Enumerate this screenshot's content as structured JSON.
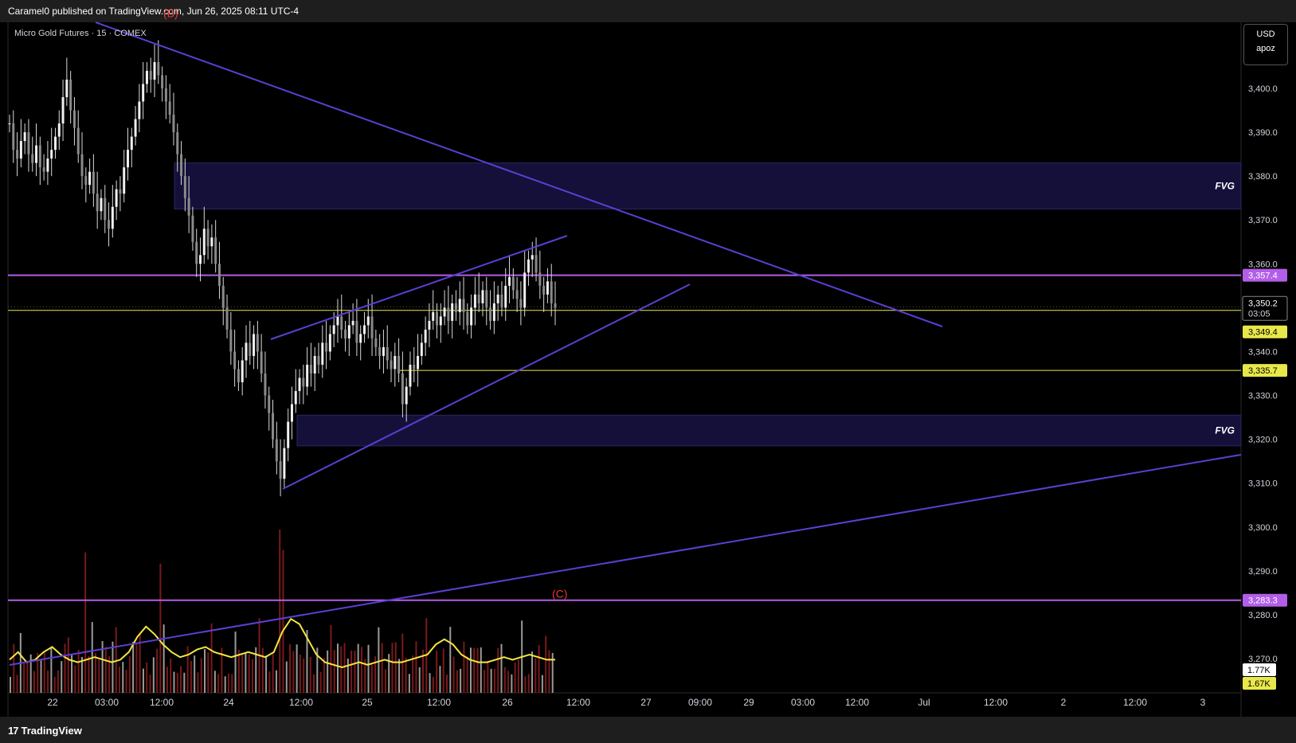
{
  "header": {
    "attribution": "Caramel0 published on TradingView.com, Jun 26, 2025 08:11 UTC-4"
  },
  "symbol_label": "Micro Gold Futures · 15 · COMEX",
  "currency_box": {
    "currency": "USD",
    "unit": "apoz"
  },
  "footer": {
    "brand": "TradingView"
  },
  "colors": {
    "background": "#000000",
    "trendline": "#5b3fd1",
    "level_purple": "#b35ee8",
    "level_yellow": "#e8e84a",
    "volume_ma": "#f5e642",
    "candle": "#d9d9d9",
    "volume_bar": "#7a1a1a",
    "fvg_fill": "#14103a",
    "wave_label": "#e53935"
  },
  "chart_data": {
    "type": "candlestick",
    "title": "Micro Gold Futures · 15 · COMEX",
    "y_ticks": [
      3400.0,
      3390.0,
      3380.0,
      3370.0,
      3360.0,
      3340.0,
      3330.0,
      3320.0,
      3310.0,
      3300.0,
      3290.0,
      3280.0,
      3270.0
    ],
    "y_tick_labels": [
      "3,400.0",
      "3,390.0",
      "3,380.0",
      "3,370.0",
      "3,360.0",
      "3,340.0",
      "3,330.0",
      "3,320.0",
      "3,310.0",
      "3,300.0",
      "3,290.0",
      "3,280.0",
      "3,270.0"
    ],
    "ylim": [
      3263.0,
      3414.0
    ],
    "x_tick_labels": [
      "22",
      "03:00",
      "12:00",
      "24",
      "12:00",
      "25",
      "12:00",
      "26",
      "12:00",
      "27",
      "09:00",
      "29",
      "03:00",
      "12:00",
      "Jul",
      "12:00",
      "2",
      "12:00",
      "3"
    ],
    "price_labels": [
      {
        "value": 3357.4,
        "text": "3,357.4",
        "kind": "purple"
      },
      {
        "value": 3350.2,
        "text": "3,350.2",
        "sub": "03:05",
        "kind": "current"
      },
      {
        "value": 3349.4,
        "text": "3,349.4",
        "kind": "yellow"
      },
      {
        "value": 3335.7,
        "text": "3,335.7",
        "kind": "yellow"
      },
      {
        "value": 3283.3,
        "text": "3,283.3",
        "kind": "purple"
      }
    ],
    "volume_labels": [
      {
        "text": "1.77K",
        "kind": "white"
      },
      {
        "text": "1.67K",
        "kind": "yellow"
      }
    ],
    "horizontal_levels": [
      {
        "value": 3357.4,
        "color": "purple"
      },
      {
        "value": 3349.4,
        "color": "yellow"
      },
      {
        "value": 3335.7,
        "color": "yellow"
      },
      {
        "value": 3283.3,
        "color": "purple"
      }
    ],
    "fvg_zones": [
      {
        "label": "FVG",
        "top": 3383.0,
        "bottom": 3372.5
      },
      {
        "label": "FVG",
        "top": 3325.5,
        "bottom": 3318.5
      }
    ],
    "wave_labels": [
      {
        "text": "(B)",
        "price": 3417.0
      },
      {
        "text": "(C)",
        "price": 3285.0
      }
    ],
    "candles_close": [
      3392,
      3386,
      3384,
      3388,
      3390,
      3385,
      3383,
      3387,
      3382,
      3381,
      3384,
      3386,
      3389,
      3392,
      3398,
      3402,
      3395,
      3391,
      3385,
      3380,
      3378,
      3381,
      3376,
      3372,
      3375,
      3370,
      3368,
      3373,
      3377,
      3376,
      3382,
      3386,
      3389,
      3393,
      3397,
      3401,
      3404,
      3402,
      3406,
      3403,
      3400,
      3397,
      3394,
      3390,
      3385,
      3380,
      3375,
      3371,
      3365,
      3360,
      3362,
      3368,
      3364,
      3366,
      3360,
      3355,
      3350,
      3345,
      3340,
      3336,
      3333,
      3338,
      3342,
      3339,
      3344,
      3340,
      3335,
      3330,
      3326,
      3320,
      3315,
      3311,
      3318,
      3324,
      3328,
      3331,
      3334,
      3332,
      3337,
      3335,
      3339,
      3337,
      3342,
      3340,
      3344,
      3346,
      3348,
      3345,
      3343,
      3346,
      3347,
      3342,
      3344,
      3346,
      3348,
      3343,
      3341,
      3339,
      3341,
      3338,
      3336,
      3339,
      3335,
      3328,
      3332,
      3337,
      3336,
      3339,
      3342,
      3345,
      3347,
      3349,
      3346,
      3348,
      3350,
      3347,
      3351,
      3349,
      3352,
      3349,
      3346,
      3350,
      3353,
      3351,
      3354,
      3350,
      3347,
      3351,
      3353,
      3350,
      3355,
      3357,
      3354,
      3352,
      3350,
      3358,
      3361,
      3362,
      3358,
      3355,
      3353,
      3356,
      3351,
      3350
    ],
    "volume_ma": [
      1.3,
      1.6,
      1.2,
      1.3,
      1.6,
      1.8,
      1.5,
      1.3,
      1.2,
      1.3,
      1.4,
      1.3,
      1.2,
      1.3,
      1.6,
      2.2,
      2.6,
      2.3,
      1.9,
      1.6,
      1.4,
      1.5,
      1.7,
      1.8,
      1.6,
      1.5,
      1.4,
      1.5,
      1.6,
      1.5,
      1.4,
      1.6,
      2.4,
      2.9,
      2.7,
      2.1,
      1.5,
      1.2,
      1.1,
      1.0,
      1.1,
      1.2,
      1.1,
      1.2,
      1.3,
      1.2,
      1.2,
      1.3,
      1.4,
      1.5,
      1.9,
      2.1,
      1.9,
      1.5,
      1.3,
      1.2,
      1.2,
      1.3,
      1.4,
      1.3,
      1.4,
      1.5,
      1.4,
      1.3,
      1.3
    ]
  }
}
